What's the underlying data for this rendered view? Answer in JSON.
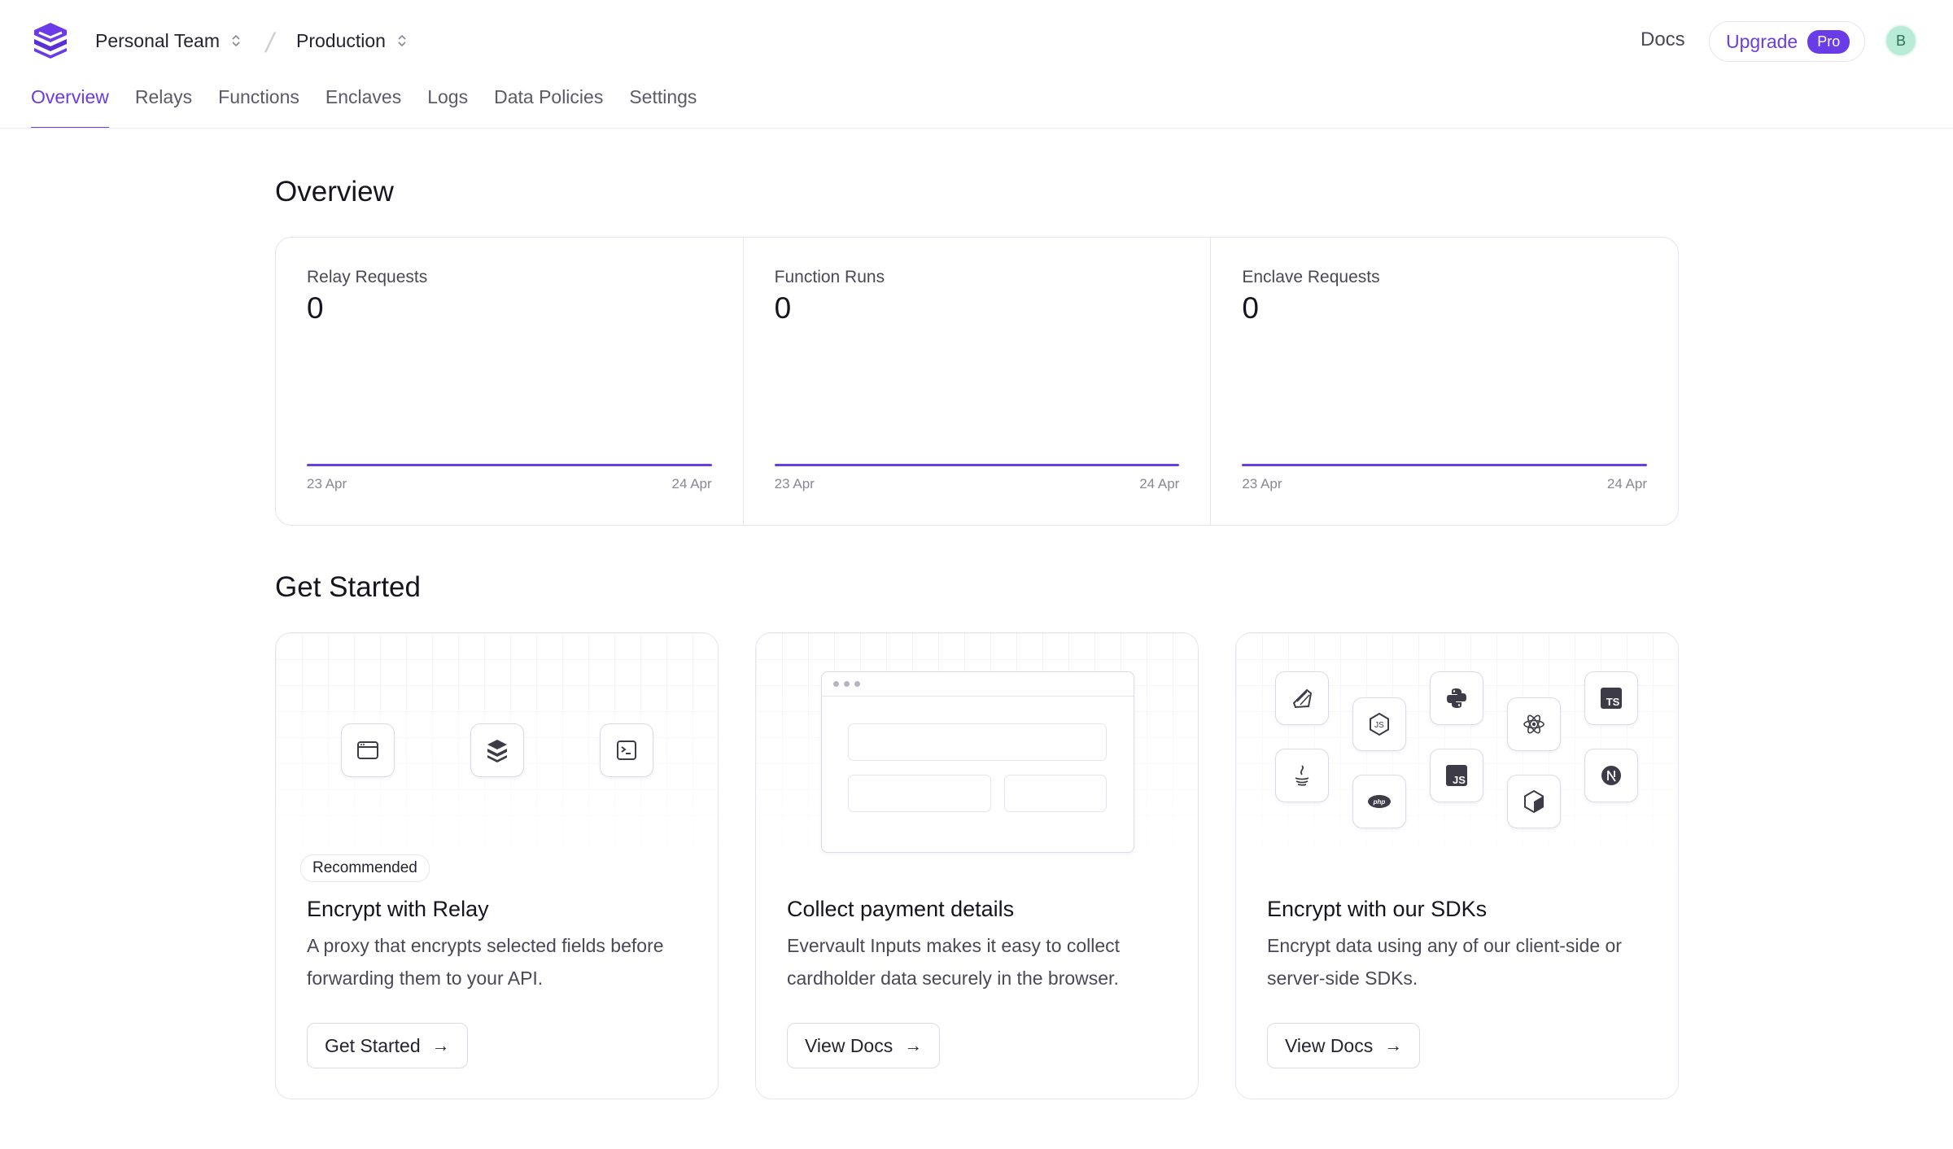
{
  "header": {
    "team": "Personal Team",
    "environment": "Production",
    "docs": "Docs",
    "upgrade": "Upgrade",
    "pro": "Pro",
    "avatar_initial": "B"
  },
  "tabs": [
    {
      "label": "Overview",
      "active": true
    },
    {
      "label": "Relays"
    },
    {
      "label": "Functions"
    },
    {
      "label": "Enclaves"
    },
    {
      "label": "Logs"
    },
    {
      "label": "Data Policies"
    },
    {
      "label": "Settings"
    }
  ],
  "overview": {
    "title": "Overview",
    "stats": [
      {
        "label": "Relay Requests",
        "value": "0",
        "start": "23 Apr",
        "end": "24 Apr"
      },
      {
        "label": "Function Runs",
        "value": "0",
        "start": "23 Apr",
        "end": "24 Apr"
      },
      {
        "label": "Enclave Requests",
        "value": "0",
        "start": "23 Apr",
        "end": "24 Apr"
      }
    ]
  },
  "get_started": {
    "title": "Get Started",
    "cards": [
      {
        "badge": "Recommended",
        "title": "Encrypt with Relay",
        "desc": "A proxy that encrypts selected fields before forwarding them to your API.",
        "button": "Get Started"
      },
      {
        "title": "Collect payment details",
        "desc": "Evervault Inputs makes it easy to collect cardholder data securely in the browser.",
        "button": "View Docs"
      },
      {
        "title": "Encrypt with our SDKs",
        "desc": "Encrypt data using any of our client-side or server-side SDKs.",
        "button": "View Docs"
      }
    ],
    "sdk_icons": [
      "ruby-icon",
      "nodejs-icon",
      "python-icon",
      "react-icon",
      "typescript-icon",
      "java-icon",
      "php-icon",
      "javascript-icon",
      "deno-icon",
      "nextjs-icon"
    ]
  },
  "colors": {
    "accent": "#6a3ce8",
    "border": "#e6e4ee",
    "text": "#16141f",
    "muted": "#4a4857"
  }
}
